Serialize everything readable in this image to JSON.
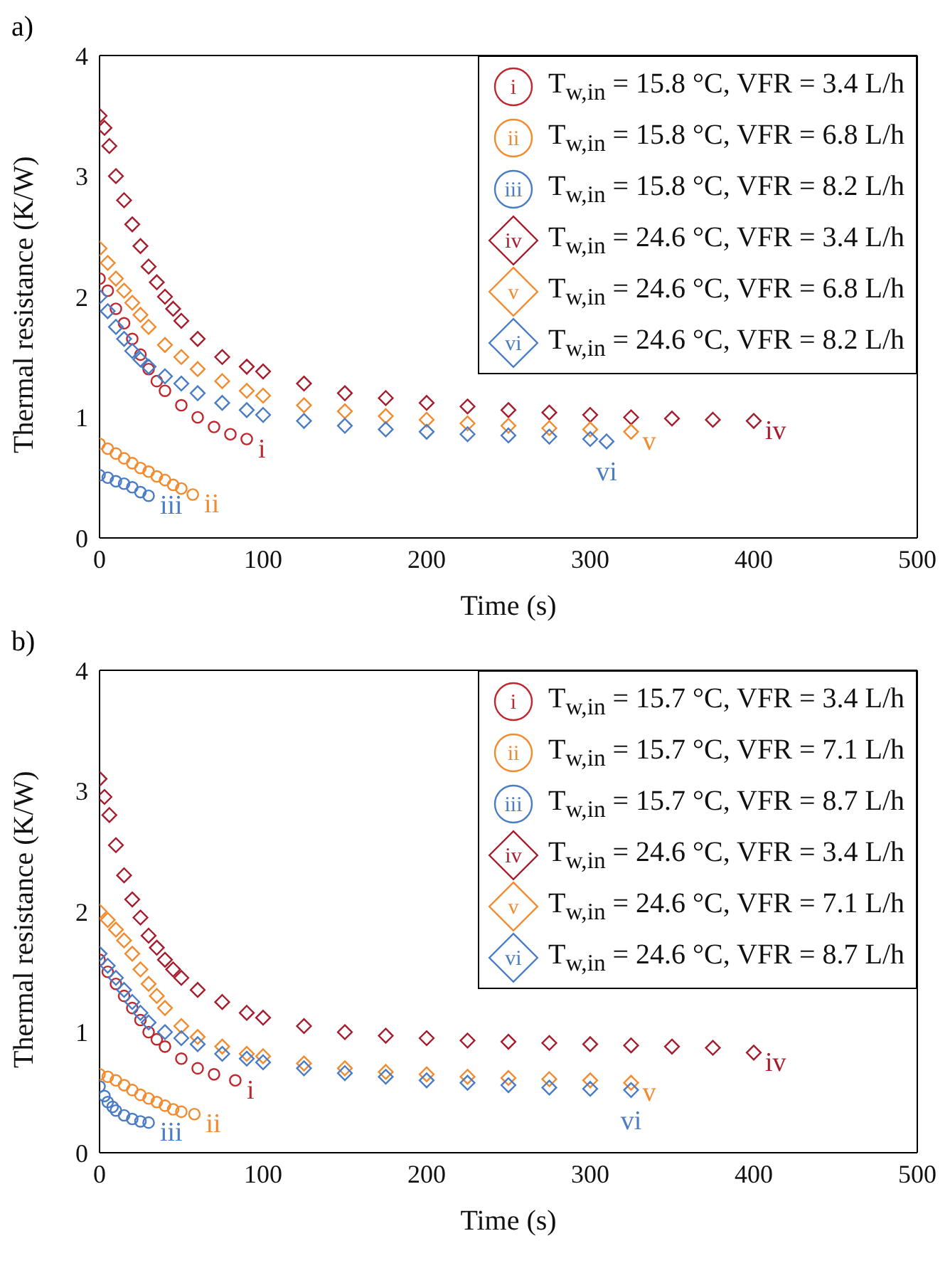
{
  "chart_data": [
    {
      "type": "scatter",
      "title": "a)",
      "xlabel": "Time (s)",
      "ylabel": "Thermal resistance (K/W)",
      "xlim": [
        0,
        500
      ],
      "xticks": [
        0,
        100,
        200,
        300,
        400,
        500
      ],
      "ylim": [
        0,
        4
      ],
      "yticks": [
        0,
        1,
        2,
        3,
        4
      ],
      "legend": "top right",
      "series": [
        {
          "name": "T$_{w,in}$ = 15.8 °C, VFR = 3.4 L/h",
          "color": "#c0272d",
          "marker": "circle",
          "x": [
            0,
            5,
            10,
            15,
            20,
            25,
            30,
            35,
            40,
            50,
            60,
            70,
            80,
            90
          ],
          "values": [
            2.15,
            2.05,
            1.9,
            1.78,
            1.65,
            1.52,
            1.4,
            1.3,
            1.22,
            1.1,
            1.0,
            0.92,
            0.86,
            0.82
          ]
        },
        {
          "name": "T$_{w,in}$ = 15.8 °C, VFR = 6.8 L/h",
          "color": "#f28a2e",
          "marker": "circle",
          "x": [
            0,
            5,
            10,
            15,
            20,
            25,
            30,
            35,
            40,
            45,
            50,
            57
          ],
          "values": [
            0.78,
            0.74,
            0.7,
            0.66,
            0.62,
            0.58,
            0.55,
            0.51,
            0.48,
            0.44,
            0.41,
            0.36
          ]
        },
        {
          "name": "T$_{w,in}$ = 15.8 °C, VFR = 8.2 L/h",
          "color": "#4a7cc6",
          "marker": "circle",
          "x": [
            0,
            5,
            10,
            15,
            20,
            25,
            30
          ],
          "values": [
            0.52,
            0.5,
            0.47,
            0.45,
            0.42,
            0.38,
            0.35
          ]
        },
        {
          "name": "T$_{w,in}$ = 24.6 °C, VFR = 3.4 L/h",
          "color": "#a51d2d",
          "marker": "diamond",
          "x": [
            0,
            3,
            6,
            10,
            15,
            20,
            25,
            30,
            35,
            40,
            45,
            50,
            60,
            75,
            90,
            100,
            125,
            150,
            175,
            200,
            225,
            250,
            275,
            300,
            325,
            350,
            375,
            400
          ],
          "values": [
            3.5,
            3.4,
            3.25,
            3.0,
            2.8,
            2.6,
            2.42,
            2.25,
            2.12,
            2.0,
            1.9,
            1.8,
            1.65,
            1.5,
            1.42,
            1.38,
            1.28,
            1.2,
            1.16,
            1.12,
            1.09,
            1.06,
            1.04,
            1.02,
            1.0,
            0.99,
            0.98,
            0.97
          ]
        },
        {
          "name": "T$_{w,in}$ = 24.6 °C, VFR = 6.8 L/h",
          "color": "#f28a2e",
          "marker": "diamond",
          "x": [
            0,
            5,
            10,
            15,
            20,
            25,
            30,
            40,
            50,
            60,
            75,
            90,
            100,
            125,
            150,
            175,
            200,
            225,
            250,
            275,
            300,
            325
          ],
          "values": [
            2.4,
            2.28,
            2.15,
            2.05,
            1.95,
            1.85,
            1.75,
            1.6,
            1.5,
            1.4,
            1.3,
            1.22,
            1.18,
            1.1,
            1.05,
            1.01,
            0.98,
            0.95,
            0.93,
            0.91,
            0.9,
            0.88
          ]
        },
        {
          "name": "T$_{w,in}$ = 24.6 °C, VFR = 8.2 L/h",
          "color": "#4a7cc6",
          "marker": "diamond",
          "x": [
            0,
            5,
            10,
            15,
            20,
            25,
            30,
            40,
            50,
            60,
            75,
            90,
            100,
            125,
            150,
            175,
            200,
            225,
            250,
            275,
            300,
            310
          ],
          "values": [
            2.0,
            1.88,
            1.75,
            1.65,
            1.55,
            1.48,
            1.42,
            1.34,
            1.28,
            1.2,
            1.12,
            1.06,
            1.02,
            0.97,
            0.93,
            0.9,
            0.88,
            0.86,
            0.85,
            0.84,
            0.82,
            0.8
          ]
        }
      ],
      "annotations": [
        {
          "text": "i",
          "x": 90,
          "y": 0.82
        },
        {
          "text": "ii",
          "x": 57,
          "y": 0.36
        },
        {
          "text": "iii",
          "x": 30,
          "y": 0.35
        },
        {
          "text": "iv",
          "x": 400,
          "y": 0.97
        },
        {
          "text": "v",
          "x": 325,
          "y": 0.88
        },
        {
          "text": "vi",
          "x": 310,
          "y": 0.8
        }
      ]
    },
    {
      "type": "scatter",
      "title": "b)",
      "xlabel": "Time (s)",
      "ylabel": "Thermal resistance (K/W)",
      "xlim": [
        0,
        500
      ],
      "xticks": [
        0,
        100,
        200,
        300,
        400,
        500
      ],
      "ylim": [
        0,
        4
      ],
      "yticks": [
        0,
        1,
        2,
        3,
        4
      ],
      "legend": "top right",
      "series": [
        {
          "name": "T$_{w,in}$ = 15.7 °C, VFR = 3.4 L/h",
          "color": "#c0272d",
          "marker": "circle",
          "x": [
            0,
            5,
            10,
            15,
            20,
            25,
            30,
            35,
            40,
            50,
            60,
            70,
            83
          ],
          "values": [
            1.6,
            1.5,
            1.4,
            1.3,
            1.2,
            1.1,
            1.0,
            0.94,
            0.88,
            0.78,
            0.7,
            0.65,
            0.6
          ]
        },
        {
          "name": "T$_{w,in}$ = 15.7 °C, VFR = 7.1 L/h",
          "color": "#f28a2e",
          "marker": "circle",
          "x": [
            0,
            5,
            10,
            15,
            20,
            25,
            30,
            35,
            40,
            45,
            50,
            58
          ],
          "values": [
            0.65,
            0.63,
            0.6,
            0.56,
            0.52,
            0.48,
            0.45,
            0.42,
            0.39,
            0.36,
            0.34,
            0.32
          ]
        },
        {
          "name": "T$_{w,in}$ = 15.7 °C, VFR = 8.7 L/h",
          "color": "#4a7cc6",
          "marker": "circle",
          "x": [
            0,
            3,
            5,
            8,
            10,
            15,
            20,
            25,
            30
          ],
          "values": [
            0.55,
            0.47,
            0.42,
            0.38,
            0.35,
            0.31,
            0.28,
            0.26,
            0.25
          ]
        },
        {
          "name": "T$_{w,in}$ = 24.6 °C, VFR = 3.4 L/h",
          "color": "#a51d2d",
          "marker": "diamond",
          "x": [
            0,
            3,
            6,
            10,
            15,
            20,
            25,
            30,
            35,
            40,
            45,
            50,
            60,
            75,
            90,
            100,
            125,
            150,
            175,
            200,
            225,
            250,
            275,
            300,
            325,
            350,
            375,
            400
          ],
          "values": [
            3.1,
            2.95,
            2.8,
            2.55,
            2.3,
            2.1,
            1.95,
            1.8,
            1.7,
            1.6,
            1.52,
            1.45,
            1.35,
            1.25,
            1.16,
            1.12,
            1.05,
            1.0,
            0.97,
            0.95,
            0.93,
            0.92,
            0.91,
            0.9,
            0.89,
            0.88,
            0.87,
            0.83
          ]
        },
        {
          "name": "T$_{w,in}$ = 24.6 °C, VFR = 7.1 L/h",
          "color": "#f28a2e",
          "marker": "diamond",
          "x": [
            0,
            5,
            10,
            15,
            20,
            25,
            30,
            35,
            40,
            50,
            60,
            75,
            90,
            100,
            125,
            150,
            175,
            200,
            225,
            250,
            275,
            300,
            325
          ],
          "values": [
            2.0,
            1.93,
            1.85,
            1.76,
            1.65,
            1.52,
            1.4,
            1.3,
            1.2,
            1.05,
            0.96,
            0.88,
            0.82,
            0.8,
            0.74,
            0.7,
            0.67,
            0.65,
            0.63,
            0.62,
            0.61,
            0.6,
            0.58
          ]
        },
        {
          "name": "T$_{w,in}$ = 24.6 °C, VFR = 8.7 L/h",
          "color": "#4a7cc6",
          "marker": "diamond",
          "x": [
            0,
            5,
            10,
            15,
            20,
            25,
            30,
            40,
            50,
            60,
            75,
            90,
            100,
            125,
            150,
            175,
            200,
            225,
            250,
            275,
            300,
            325
          ],
          "values": [
            1.65,
            1.55,
            1.45,
            1.35,
            1.25,
            1.16,
            1.08,
            1.0,
            0.95,
            0.9,
            0.82,
            0.78,
            0.75,
            0.7,
            0.66,
            0.63,
            0.6,
            0.58,
            0.56,
            0.54,
            0.53,
            0.52
          ]
        }
      ],
      "annotations": [
        {
          "text": "i",
          "x": 83,
          "y": 0.6
        },
        {
          "text": "ii",
          "x": 58,
          "y": 0.32
        },
        {
          "text": "iii",
          "x": 30,
          "y": 0.25
        },
        {
          "text": "iv",
          "x": 400,
          "y": 0.83
        },
        {
          "text": "v",
          "x": 325,
          "y": 0.58
        },
        {
          "text": "vi",
          "x": 325,
          "y": 0.52
        }
      ]
    }
  ]
}
